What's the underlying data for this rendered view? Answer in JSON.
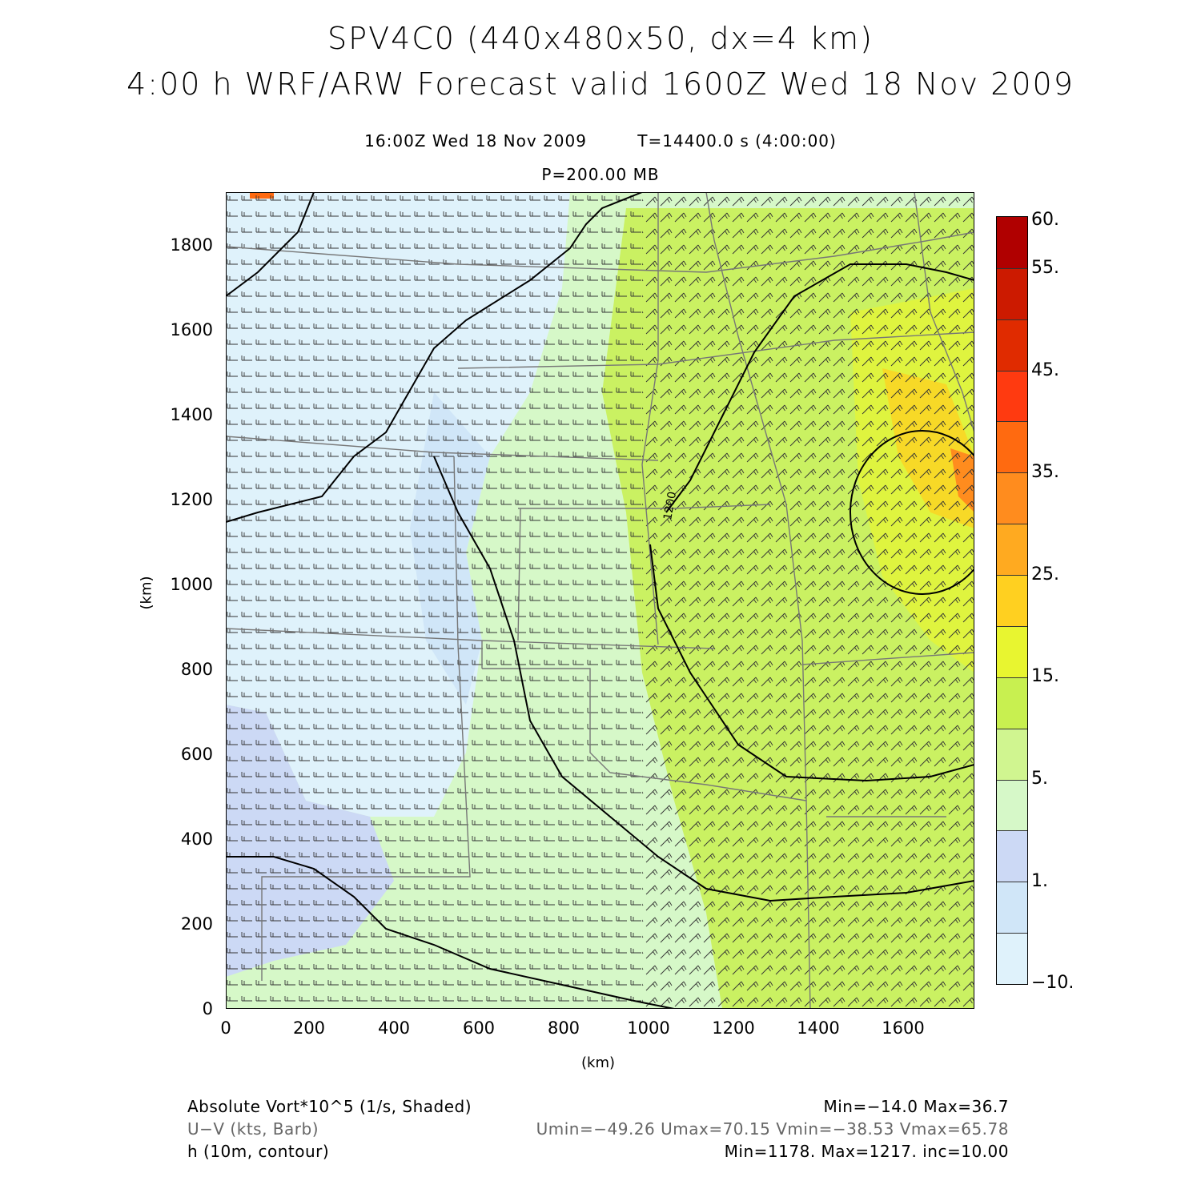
{
  "header": {
    "title_line1": "SPV4C0 (440x480x50, dx=4 km)",
    "title_line2": "4:00 h WRF/ARW Forecast valid 1600Z Wed 18 Nov 2009",
    "valid_time": "16:00Z Wed 18 Nov 2009",
    "sim_time": "T=14400.0 s (4:00:00)",
    "level": "P=200.00 MB"
  },
  "axes": {
    "x_label": "(km)",
    "y_label": "(km)",
    "x_ticks": [
      "0",
      "200",
      "400",
      "600",
      "800",
      "1000",
      "1200",
      "1400",
      "1600"
    ],
    "y_ticks": [
      "0",
      "200",
      "400",
      "600",
      "800",
      "1000",
      "1200",
      "1400",
      "1600",
      "1800"
    ]
  },
  "map": {
    "contour_label": "1200"
  },
  "colorbar": {
    "labels": [
      "60.",
      "55.",
      "45.",
      "35.",
      "25.",
      "15.",
      "5.",
      "1.",
      "−10."
    ],
    "colors": [
      "#b00000",
      "#cc1a00",
      "#e02b00",
      "#ff3a10",
      "#ff6a10",
      "#ff8c1e",
      "#ffaa20",
      "#ffd020",
      "#e8f530",
      "#c8f050",
      "#d0f590",
      "#d6f8c8",
      "#ccd9f5",
      "#d0e6f8",
      "#dff2fb"
    ]
  },
  "footer": {
    "field1_name": "Absolute Vort*10^5 (1/s, Shaded)",
    "field1_stats": "Min=−14.0 Max=36.7",
    "field2_name": "U−V (kts, Barb)",
    "field2_stats": "Umin=−49.26 Umax=70.15 Vmin=−38.53 Vmax=65.78",
    "field3_name": "h (10m, contour)",
    "field3_stats": "Min=1178. Max=1217. inc=10.00"
  }
}
